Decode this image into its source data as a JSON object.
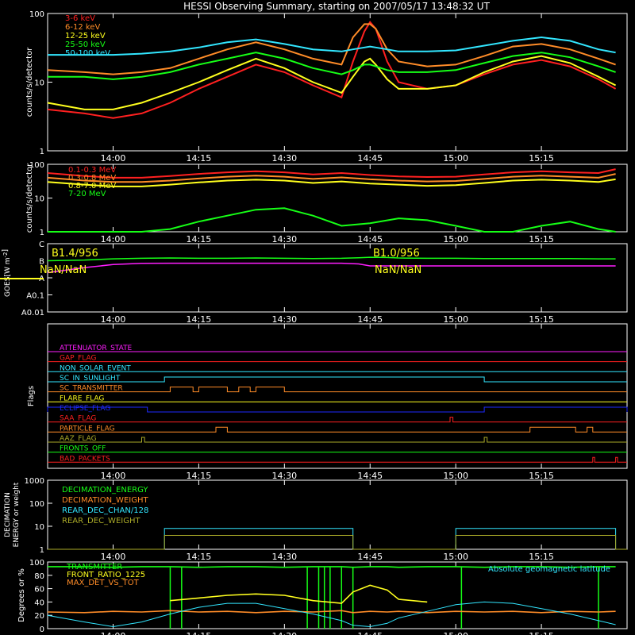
{
  "title": "HESSI Observing Summary, starting on 2007/05/17 13:48:32 UT",
  "colors": {
    "red": "#ff2020",
    "orange": "#ff8c28",
    "yellow": "#ffff1e",
    "green": "#16ff16",
    "cyan": "#32e6ff",
    "magenta": "#ff1eff",
    "blue": "#1e2aff",
    "olive": "#aaaa28",
    "purple": "#b428dc",
    "white": "#ffffff"
  },
  "time_axis": {
    "start": "13:48:32",
    "end": "15:30",
    "ticks": [
      "14:00",
      "14:15",
      "14:30",
      "14:45",
      "15:00",
      "15:15"
    ]
  },
  "chart_data": [
    {
      "type": "line",
      "panel": "count-rates-low",
      "ylabel": "counts/s/detector",
      "yscale": "log",
      "ylim": [
        1,
        100
      ],
      "yticks": [
        "1",
        "10",
        "100"
      ],
      "x": [
        "13:48:32",
        "13:55",
        "14:00",
        "14:05",
        "14:10",
        "14:15",
        "14:20",
        "14:25",
        "14:30",
        "14:35",
        "14:40",
        "14:42",
        "14:44",
        "14:45",
        "14:46",
        "14:48",
        "14:50",
        "14:55",
        "15:00",
        "15:05",
        "15:10",
        "15:15",
        "15:20",
        "15:25",
        "15:28"
      ],
      "series": [
        {
          "name": "3-6 keV",
          "color": "red",
          "values": [
            4,
            3.5,
            3,
            3.5,
            5,
            8,
            12,
            18,
            14,
            9,
            6,
            20,
            55,
            75,
            60,
            20,
            10,
            8,
            9,
            13,
            18,
            21,
            17,
            11,
            8
          ]
        },
        {
          "name": "6-12 keV",
          "color": "orange",
          "values": [
            15,
            14,
            13,
            14,
            16,
            22,
            30,
            38,
            30,
            22,
            18,
            45,
            70,
            70,
            60,
            30,
            20,
            17,
            18,
            24,
            33,
            36,
            30,
            22,
            18
          ]
        },
        {
          "name": "12-25 keV",
          "color": "yellow",
          "values": [
            5,
            4,
            4,
            5,
            7,
            10,
            15,
            22,
            16,
            10,
            7,
            12,
            20,
            22,
            18,
            11,
            8,
            8,
            9,
            14,
            20,
            24,
            19,
            12,
            9
          ]
        },
        {
          "name": "25-50 keV",
          "color": "green",
          "values": [
            12,
            12,
            11,
            12,
            14,
            18,
            22,
            27,
            22,
            16,
            13,
            15,
            18,
            18,
            17,
            15,
            14,
            14,
            15,
            19,
            24,
            27,
            23,
            17,
            14
          ]
        },
        {
          "name": "50-100 keV",
          "color": "cyan",
          "values": [
            25,
            25,
            25,
            26,
            28,
            32,
            38,
            42,
            36,
            30,
            28,
            30,
            32,
            33,
            32,
            30,
            28,
            28,
            29,
            34,
            40,
            45,
            40,
            30,
            27
          ]
        }
      ]
    },
    {
      "type": "line",
      "panel": "count-rates-high",
      "ylabel": "counts/s/detector",
      "yscale": "log",
      "ylim": [
        1,
        100
      ],
      "yticks": [
        "1",
        "10",
        "100"
      ],
      "x": [
        "13:48:32",
        "13:55",
        "14:00",
        "14:05",
        "14:10",
        "14:15",
        "14:20",
        "14:25",
        "14:30",
        "14:35",
        "14:40",
        "14:45",
        "14:50",
        "14:55",
        "15:00",
        "15:05",
        "15:10",
        "15:15",
        "15:20",
        "15:25",
        "15:28"
      ],
      "series": [
        {
          "name": "0.1-0.3 MeV",
          "color": "red",
          "values": [
            55,
            45,
            40,
            40,
            45,
            52,
            58,
            62,
            58,
            50,
            55,
            48,
            44,
            42,
            43,
            50,
            58,
            62,
            58,
            55,
            72
          ]
        },
        {
          "name": "0.3-0.8 MeV",
          "color": "orange",
          "values": [
            40,
            33,
            30,
            30,
            33,
            38,
            43,
            46,
            43,
            37,
            41,
            36,
            33,
            31,
            32,
            37,
            43,
            46,
            43,
            40,
            52
          ]
        },
        {
          "name": "0.8-7.0 MeV",
          "color": "yellow",
          "values": [
            30,
            25,
            22,
            22,
            25,
            29,
            33,
            35,
            33,
            28,
            31,
            27,
            25,
            23,
            24,
            28,
            33,
            35,
            33,
            30,
            36
          ]
        },
        {
          "name": "7-20 MeV",
          "color": "green",
          "values": [
            1,
            1,
            1,
            1,
            1.2,
            2,
            3,
            4.5,
            5,
            3,
            1.5,
            1.8,
            2.5,
            2.2,
            1.5,
            1,
            1,
            1.5,
            2,
            1.2,
            1
          ]
        }
      ]
    },
    {
      "type": "line",
      "panel": "goes",
      "ylabel": "GOES [W m⁻²]",
      "ylabel_parts": [
        "GOES",
        "[W m",
        "-2",
        "]"
      ],
      "tick_labels": [
        "C",
        "B",
        "A",
        "A0.1",
        "A0.01"
      ],
      "annotations": [
        {
          "text": "B1.4/956",
          "color": "yellow"
        },
        {
          "text": "NaN/NaN",
          "color": "yellow"
        },
        {
          "text": "B1.0/956",
          "color": "yellow"
        },
        {
          "text": "NaN/NaN",
          "color": "yellow"
        }
      ],
      "x": [
        "13:48:32",
        "13:55",
        "14:00",
        "14:05",
        "14:10",
        "14:15",
        "14:20",
        "14:25",
        "14:30",
        "14:35",
        "14:40",
        "14:43",
        "14:45",
        "14:48",
        "14:50",
        "14:55",
        "15:00",
        "15:05",
        "15:10",
        "15:15",
        "15:20",
        "15:25",
        "15:28"
      ],
      "series": [
        {
          "name": "",
          "color": "green",
          "values": [
            1.0,
            1.1,
            1.3,
            1.4,
            1.45,
            1.4,
            1.4,
            1.45,
            1.4,
            1.35,
            1.4,
            1.5,
            1.6,
            1.55,
            1.45,
            1.4,
            1.4,
            1.35,
            1.35,
            1.35,
            1.35,
            1.3,
            1.3
          ]
        },
        {
          "name": "",
          "color": "magenta",
          "values": [
            0.2,
            0.4,
            0.6,
            0.7,
            0.72,
            0.72,
            0.72,
            0.72,
            0.72,
            0.72,
            0.72,
            0.65,
            0.5,
            0.5,
            0.5,
            0.5,
            0.5,
            0.5,
            0.5,
            0.5,
            0.5,
            0.5,
            0.5
          ]
        }
      ]
    },
    {
      "type": "line",
      "panel": "flags",
      "ylabel": "Flags",
      "flags": [
        {
          "name": "ATTENUATOR_STATE",
          "color": "magenta",
          "high": []
        },
        {
          "name": "GAP_FLAG",
          "color": "red",
          "high": []
        },
        {
          "name": "NON_SOLAR_EVENT",
          "color": "cyan",
          "high": []
        },
        {
          "name": "SC_IN_SUNLIGHT",
          "color": "cyan",
          "high": [
            [
              "14:09",
              "15:05"
            ]
          ]
        },
        {
          "name": "SC_TRANSMITTER",
          "color": "orange",
          "high": [
            [
              "14:10",
              "14:14"
            ],
            [
              "14:15",
              "14:20"
            ],
            [
              "14:22",
              "14:24"
            ],
            [
              "14:25",
              "14:30"
            ]
          ]
        },
        {
          "name": "FLARE_FLAG",
          "color": "yellow",
          "high": []
        },
        {
          "name": "ECLIPSE_FLAG",
          "color": "blue",
          "high": [
            [
              "13:48:32",
              "14:06"
            ],
            [
              "15:05",
              "15:30"
            ]
          ]
        },
        {
          "name": "SAA_FLAG",
          "color": "red",
          "high": [
            [
              "14:59",
              "14:59:30"
            ]
          ]
        },
        {
          "name": "PARTICLE_FLAG",
          "color": "orange",
          "high": [
            [
              "14:18",
              "14:20"
            ],
            [
              "15:13",
              "15:21"
            ],
            [
              "15:23",
              "15:24"
            ]
          ]
        },
        {
          "name": "AAZ_FLAG",
          "color": "olive",
          "high": [
            [
              "14:05",
              "14:05:30"
            ],
            [
              "15:05",
              "15:05:30"
            ]
          ]
        },
        {
          "name": "FRONTS_OFF",
          "color": "green",
          "high": []
        },
        {
          "name": "BAD_PACKETS",
          "color": "red",
          "high": [
            [
              "15:24",
              "15:24:20"
            ],
            [
              "15:28",
              "15:28:20"
            ]
          ]
        }
      ]
    },
    {
      "type": "line",
      "panel": "decimation",
      "ylabel": "DECIMATION ENERGY or weight",
      "ylabel_lines": [
        "DECIMATION",
        "ENERGY or weight"
      ],
      "yscale": "log",
      "ylim": [
        1,
        1000
      ],
      "yticks": [
        "1",
        "10",
        "100",
        "1000"
      ],
      "series": [
        {
          "name": "DECIMATION_ENERGY",
          "color": "green",
          "segments": []
        },
        {
          "name": "DECIMATION_WEIGHT",
          "color": "orange",
          "segments": []
        },
        {
          "name": "REAR_DEC_CHAN/128",
          "color": "cyan",
          "segments": [
            [
              "14:09",
              "14:42",
              8
            ],
            [
              "15:00",
              "15:28",
              8
            ]
          ]
        },
        {
          "name": "REAR_DEC_WEIGHT",
          "color": "olive",
          "segments": [
            [
              "14:09",
              "14:42",
              4
            ],
            [
              "15:00",
              "15:28",
              4
            ]
          ]
        }
      ]
    },
    {
      "type": "line",
      "panel": "geomagnetic",
      "ylabel": "Degrees or %",
      "ylim": [
        0,
        100
      ],
      "yticks": [
        "0",
        "20",
        "40",
        "60",
        "80",
        "100"
      ],
      "annotation": "Absolute geomagnetic latitude",
      "x": [
        "13:48:32",
        "13:55",
        "14:00",
        "14:05",
        "14:10",
        "14:15",
        "14:20",
        "14:25",
        "14:30",
        "14:35",
        "14:40",
        "14:42",
        "14:45",
        "14:48",
        "14:50",
        "14:55",
        "15:00",
        "15:05",
        "15:10",
        "15:15",
        "15:20",
        "15:25",
        "15:28"
      ],
      "series": [
        {
          "name": "TRANSMITTER",
          "color": "green",
          "values": [
            93,
            93,
            92,
            93,
            93,
            92,
            93,
            93,
            92,
            93,
            93,
            92,
            93,
            93,
            92,
            93,
            93,
            92,
            93,
            93,
            92,
            93,
            93
          ]
        },
        {
          "name": "FRONT_RATIO_1225",
          "color": "yellow",
          "values": [
            null,
            null,
            null,
            null,
            42,
            46,
            50,
            52,
            50,
            42,
            38,
            55,
            65,
            58,
            44,
            40,
            null,
            null,
            null,
            null,
            null,
            null,
            null
          ]
        },
        {
          "name": "MAX_DET_VS_TOT",
          "color": "orange",
          "values": [
            25,
            24,
            26,
            25,
            27,
            25,
            26,
            24,
            26,
            25,
            27,
            24,
            26,
            25,
            26,
            24,
            26,
            25,
            26,
            24,
            26,
            25,
            26
          ]
        },
        {
          "name": "",
          "color": "cyan",
          "values": [
            20,
            10,
            3,
            10,
            22,
            32,
            38,
            38,
            30,
            22,
            12,
            5,
            3,
            8,
            16,
            26,
            36,
            40,
            38,
            30,
            22,
            12,
            6
          ]
        }
      ]
    }
  ]
}
